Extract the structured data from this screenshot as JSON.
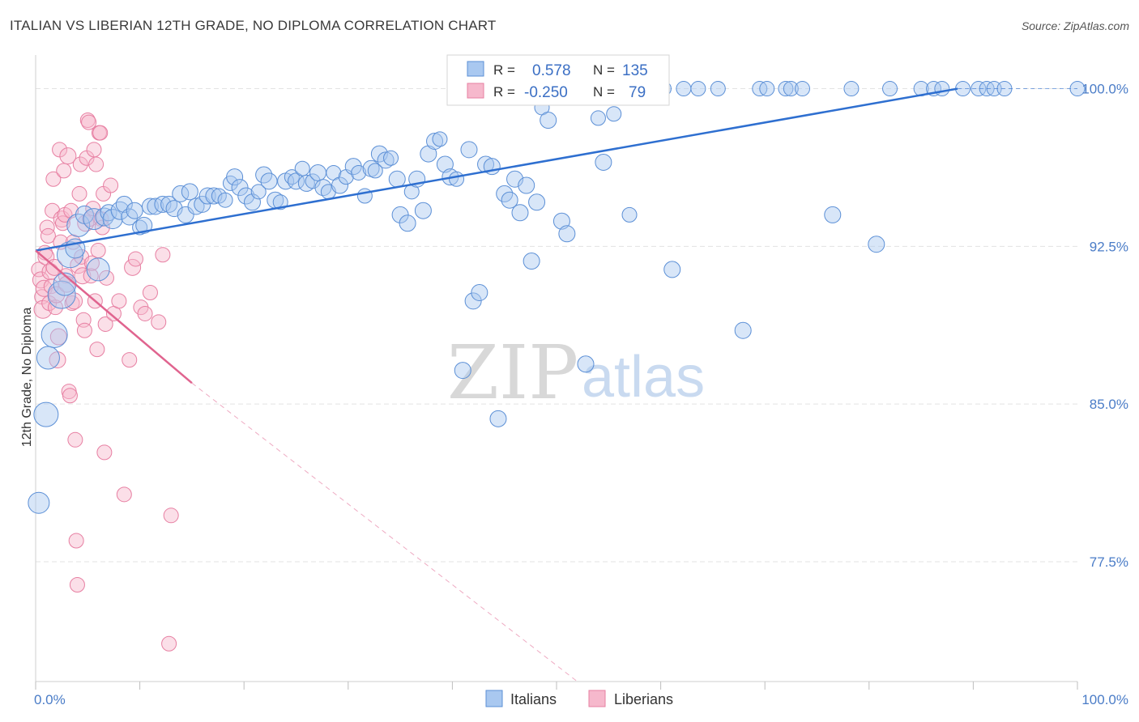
{
  "title": "ITALIAN VS LIBERIAN 12TH GRADE, NO DIPLOMA CORRELATION CHART",
  "source": "Source: ZipAtlas.com",
  "colors": {
    "italians_fill": "#a9c8f0",
    "italians_stroke": "#5b8fd6",
    "italians_line": "#2e6fd0",
    "liberians_fill": "#f6b8cc",
    "liberians_stroke": "#e77fa2",
    "liberians_line": "#e0648f",
    "grid": "#e3e3e3"
  },
  "watermark": {
    "zip": "ZIP",
    "atlas": "atlas"
  },
  "legend": {
    "r_label": "R =",
    "n_label": "N =",
    "italians_r": "0.578",
    "italians_n": "135",
    "liberians_r": "-0.250",
    "liberians_n": "79"
  },
  "chart_data": {
    "type": "scatter",
    "title": "ITALIAN VS LIBERIAN 12TH GRADE, NO DIPLOMA CORRELATION CHART",
    "xlabel": "",
    "ylabel": "12th Grade, No Diploma",
    "xlim": [
      0,
      100
    ],
    "ylim": [
      71.8,
      101.6
    ],
    "x_tick_labels": [
      "0.0%",
      "100.0%"
    ],
    "y_ticks": [
      77.5,
      85.0,
      92.5,
      100.0
    ],
    "y_tick_labels": [
      "77.5%",
      "85.0%",
      "92.5%",
      "100.0%"
    ],
    "grid": true,
    "legend_position": "top-center",
    "series": [
      {
        "name": "Italians",
        "r": 0.578,
        "n": 135,
        "trend": {
          "x0": 0,
          "y0": 92.3,
          "x1": 88.5,
          "y1": 100.0
        },
        "points": [
          [
            0.3,
            80.3,
            20
          ],
          [
            1.0,
            84.5,
            24
          ],
          [
            1.2,
            87.2,
            22
          ],
          [
            1.8,
            88.3,
            26
          ],
          [
            2.5,
            90.2,
            28
          ],
          [
            2.8,
            90.7,
            22
          ],
          [
            3.3,
            92.1,
            26
          ],
          [
            3.8,
            92.4,
            18
          ],
          [
            4.1,
            93.5,
            22
          ],
          [
            4.7,
            94.0,
            16
          ],
          [
            5.6,
            93.8,
            20
          ],
          [
            6.0,
            91.4,
            22
          ],
          [
            6.6,
            93.9,
            16
          ],
          [
            7.0,
            94.1,
            14
          ],
          [
            7.4,
            93.8,
            18
          ],
          [
            8.1,
            94.2,
            16
          ],
          [
            8.5,
            94.5,
            14
          ],
          [
            9.0,
            93.9,
            14
          ],
          [
            9.5,
            94.2,
            14
          ],
          [
            10.0,
            93.4,
            12
          ],
          [
            10.4,
            93.5,
            14
          ],
          [
            11.0,
            94.4,
            14
          ],
          [
            11.5,
            94.4,
            14
          ],
          [
            12.2,
            94.5,
            14
          ],
          [
            12.8,
            94.5,
            14
          ],
          [
            13.3,
            94.3,
            14
          ],
          [
            13.9,
            95.0,
            14
          ],
          [
            14.4,
            94.0,
            14
          ],
          [
            14.8,
            95.1,
            14
          ],
          [
            15.4,
            94.4,
            14
          ],
          [
            16.0,
            94.5,
            14
          ],
          [
            16.5,
            94.9,
            14
          ],
          [
            17.1,
            94.9,
            14
          ],
          [
            17.6,
            94.9,
            12
          ],
          [
            18.2,
            94.7,
            12
          ],
          [
            18.7,
            95.5,
            12
          ],
          [
            19.1,
            95.8,
            14
          ],
          [
            19.6,
            95.3,
            14
          ],
          [
            20.2,
            94.9,
            14
          ],
          [
            20.8,
            94.6,
            14
          ],
          [
            21.4,
            95.1,
            12
          ],
          [
            21.9,
            95.9,
            14
          ],
          [
            22.4,
            95.6,
            14
          ],
          [
            23.0,
            94.7,
            14
          ],
          [
            23.5,
            94.6,
            12
          ],
          [
            24.0,
            95.6,
            14
          ],
          [
            24.6,
            95.8,
            12
          ],
          [
            25.0,
            95.6,
            14
          ],
          [
            25.6,
            96.2,
            12
          ],
          [
            26.0,
            95.5,
            14
          ],
          [
            26.6,
            95.6,
            12
          ],
          [
            27.1,
            96.0,
            14
          ],
          [
            27.6,
            95.3,
            14
          ],
          [
            28.1,
            95.1,
            12
          ],
          [
            28.6,
            96.0,
            12
          ],
          [
            29.2,
            95.4,
            14
          ],
          [
            29.8,
            95.8,
            12
          ],
          [
            30.5,
            96.3,
            14
          ],
          [
            31.0,
            96.0,
            12
          ],
          [
            31.6,
            94.9,
            12
          ],
          [
            32.2,
            96.2,
            14
          ],
          [
            32.6,
            96.1,
            12
          ],
          [
            33.0,
            96.9,
            14
          ],
          [
            33.6,
            96.6,
            14
          ],
          [
            34.1,
            96.7,
            12
          ],
          [
            34.7,
            95.7,
            14
          ],
          [
            35.0,
            94.0,
            14
          ],
          [
            35.7,
            93.6,
            14
          ],
          [
            36.1,
            95.1,
            12
          ],
          [
            36.6,
            95.7,
            14
          ],
          [
            37.2,
            94.2,
            14
          ],
          [
            37.7,
            96.9,
            14
          ],
          [
            38.3,
            97.5,
            14
          ],
          [
            38.8,
            97.6,
            12
          ],
          [
            39.3,
            96.4,
            14
          ],
          [
            39.8,
            95.8,
            14
          ],
          [
            40.4,
            95.7,
            12
          ],
          [
            41.0,
            86.6,
            14
          ],
          [
            41.6,
            97.1,
            14
          ],
          [
            42.0,
            89.9,
            14
          ],
          [
            42.6,
            90.3,
            14
          ],
          [
            43.2,
            96.4,
            14
          ],
          [
            43.8,
            96.3,
            14
          ],
          [
            44.4,
            84.3,
            14
          ],
          [
            45.0,
            95.0,
            14
          ],
          [
            45.5,
            94.7,
            14
          ],
          [
            46.0,
            95.7,
            14
          ],
          [
            46.5,
            94.1,
            14
          ],
          [
            47.1,
            95.4,
            14
          ],
          [
            47.6,
            91.8,
            14
          ],
          [
            48.1,
            94.6,
            14
          ],
          [
            48.6,
            99.1,
            12
          ],
          [
            49.2,
            98.5,
            14
          ],
          [
            50.0,
            100.0,
            12
          ],
          [
            50.5,
            93.7,
            14
          ],
          [
            51.0,
            93.1,
            14
          ],
          [
            52.3,
            100.0,
            12
          ],
          [
            52.8,
            86.9,
            14
          ],
          [
            53.5,
            100.0,
            12
          ],
          [
            54.0,
            98.6,
            12
          ],
          [
            54.5,
            96.5,
            14
          ],
          [
            55.0,
            100.0,
            12
          ],
          [
            55.5,
            98.8,
            12
          ],
          [
            56.2,
            100.0,
            12
          ],
          [
            57.0,
            94.0,
            12
          ],
          [
            57.8,
            100.0,
            12
          ],
          [
            58.5,
            100.0,
            12
          ],
          [
            59.3,
            100.0,
            12
          ],
          [
            60.3,
            100.0,
            12
          ],
          [
            61.1,
            91.4,
            14
          ],
          [
            62.2,
            100.0,
            12
          ],
          [
            63.6,
            100.0,
            12
          ],
          [
            65.5,
            100.0,
            12
          ],
          [
            67.9,
            88.5,
            14
          ],
          [
            69.5,
            100.0,
            12
          ],
          [
            70.2,
            100.0,
            12
          ],
          [
            72.0,
            100.0,
            12
          ],
          [
            72.5,
            100.0,
            12
          ],
          [
            73.6,
            100.0,
            12
          ],
          [
            76.5,
            94.0,
            14
          ],
          [
            78.3,
            100.0,
            12
          ],
          [
            80.7,
            92.6,
            14
          ],
          [
            82.0,
            100.0,
            12
          ],
          [
            85.0,
            100.0,
            12
          ],
          [
            86.2,
            100.0,
            12
          ],
          [
            87.0,
            100.0,
            12
          ],
          [
            89.0,
            100.0,
            12
          ],
          [
            90.5,
            100.0,
            12
          ],
          [
            91.3,
            100.0,
            12
          ],
          [
            92.0,
            100.0,
            12
          ],
          [
            93.0,
            100.0,
            12
          ],
          [
            100.0,
            100.0,
            12
          ]
        ]
      },
      {
        "name": "Liberians",
        "r": -0.25,
        "n": 79,
        "trend": {
          "x0": 0,
          "y0": 92.3,
          "x1": 15,
          "y1": 86.0,
          "dash_to_x": 52,
          "dash_to_y": 71.8
        },
        "points": [
          [
            0.3,
            91.4,
            12
          ],
          [
            0.5,
            90.9,
            14
          ],
          [
            0.6,
            90.1,
            12
          ],
          [
            0.7,
            89.5,
            16
          ],
          [
            0.8,
            90.5,
            14
          ],
          [
            0.9,
            92.2,
            12
          ],
          [
            1.0,
            92.0,
            14
          ],
          [
            1.1,
            93.4,
            12
          ],
          [
            1.2,
            93.0,
            12
          ],
          [
            1.3,
            89.8,
            12
          ],
          [
            1.4,
            91.3,
            14
          ],
          [
            1.5,
            90.6,
            12
          ],
          [
            1.6,
            94.2,
            12
          ],
          [
            1.7,
            95.7,
            12
          ],
          [
            1.8,
            91.5,
            14
          ],
          [
            1.9,
            89.6,
            12
          ],
          [
            2.0,
            90.2,
            14
          ],
          [
            2.1,
            87.1,
            14
          ],
          [
            2.2,
            88.2,
            14
          ],
          [
            2.3,
            97.1,
            12
          ],
          [
            2.4,
            92.7,
            12
          ],
          [
            2.5,
            93.8,
            14
          ],
          [
            2.6,
            93.6,
            12
          ],
          [
            2.7,
            96.1,
            12
          ],
          [
            2.8,
            94.0,
            12
          ],
          [
            2.9,
            91.1,
            12
          ],
          [
            3.0,
            90.7,
            14
          ],
          [
            3.1,
            96.8,
            14
          ],
          [
            3.2,
            85.6,
            12
          ],
          [
            3.3,
            85.4,
            12
          ],
          [
            3.4,
            94.2,
            12
          ],
          [
            3.5,
            89.8,
            12
          ],
          [
            3.6,
            92.7,
            12
          ],
          [
            3.7,
            89.9,
            14
          ],
          [
            3.8,
            83.3,
            12
          ],
          [
            3.9,
            78.5,
            12
          ],
          [
            4.0,
            76.4,
            12
          ],
          [
            4.1,
            91.6,
            14
          ],
          [
            4.2,
            95.0,
            12
          ],
          [
            4.3,
            96.4,
            12
          ],
          [
            4.4,
            92.0,
            12
          ],
          [
            4.5,
            91.1,
            14
          ],
          [
            4.6,
            89.0,
            12
          ],
          [
            4.7,
            88.5,
            12
          ],
          [
            4.8,
            93.6,
            14
          ],
          [
            4.9,
            96.7,
            12
          ],
          [
            5.0,
            98.5,
            12
          ],
          [
            5.1,
            98.4,
            12
          ],
          [
            5.2,
            93.8,
            12
          ],
          [
            5.3,
            91.1,
            12
          ],
          [
            5.4,
            91.7,
            12
          ],
          [
            5.5,
            94.3,
            12
          ],
          [
            5.6,
            97.1,
            12
          ],
          [
            5.7,
            89.9,
            12
          ],
          [
            5.8,
            96.4,
            12
          ],
          [
            5.9,
            87.6,
            12
          ],
          [
            6.0,
            92.3,
            12
          ],
          [
            6.1,
            97.9,
            12
          ],
          [
            6.2,
            97.9,
            12
          ],
          [
            6.3,
            93.8,
            12
          ],
          [
            6.4,
            93.4,
            12
          ],
          [
            6.5,
            95.0,
            12
          ],
          [
            6.6,
            82.7,
            12
          ],
          [
            6.7,
            88.8,
            12
          ],
          [
            6.8,
            91.0,
            12
          ],
          [
            7.2,
            95.4,
            12
          ],
          [
            7.5,
            89.3,
            12
          ],
          [
            8.0,
            89.9,
            12
          ],
          [
            8.5,
            80.7,
            12
          ],
          [
            9.0,
            87.1,
            12
          ],
          [
            9.3,
            91.5,
            14
          ],
          [
            9.6,
            91.9,
            12
          ],
          [
            10.1,
            89.6,
            12
          ],
          [
            10.5,
            89.3,
            12
          ],
          [
            11.0,
            90.3,
            12
          ],
          [
            11.8,
            88.9,
            12
          ],
          [
            12.2,
            92.1,
            12
          ],
          [
            12.8,
            73.6,
            12
          ],
          [
            13.0,
            79.7,
            12
          ]
        ]
      }
    ]
  },
  "bottom_legend": {
    "italians": "Italians",
    "liberians": "Liberians"
  }
}
